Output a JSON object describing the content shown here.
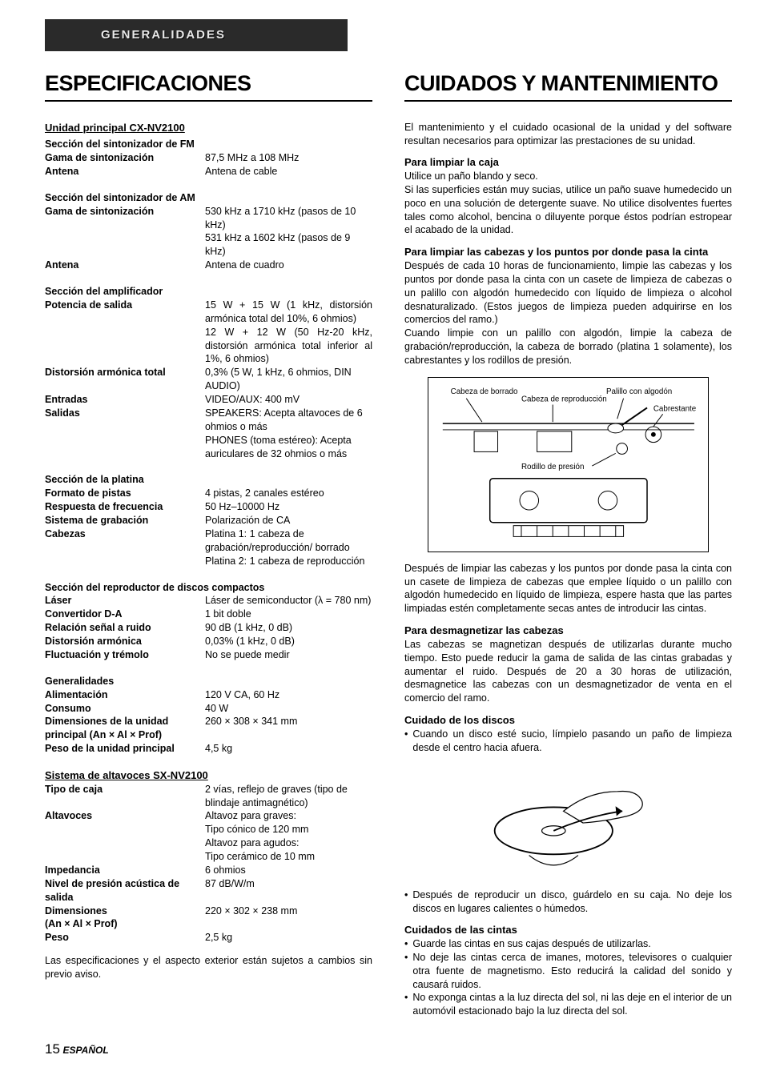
{
  "header_bar": "GENERALIDADES",
  "left": {
    "h1": "ESPECIFICACIONES",
    "main_unit_title": "Unidad principal CX-NV2100",
    "fm_title": "Sección del sintonizador de FM",
    "fm_range_l": "Gama de sintonización",
    "fm_range_v": "87,5 MHz a 108 MHz",
    "fm_ant_l": "Antena",
    "fm_ant_v": "Antena de cable",
    "am_title": "Sección del sintonizador de AM",
    "am_range_l": "Gama de sintonización",
    "am_range_v": "530 kHz a 1710 kHz (pasos de 10 kHz)\n531 kHz a 1602 kHz (pasos de 9 kHz)",
    "am_ant_l": "Antena",
    "am_ant_v": "Antena de cuadro",
    "amp_title": "Sección del amplificador",
    "amp_pow_l": "Potencia de salida",
    "amp_pow_v": "15 W + 15 W (1 kHz, distorsión armónica total del 10%, 6 ohmios)\n12 W + 12 W (50 Hz-20 kHz, distorsión armónica total inferior al 1%, 6 ohmios)",
    "amp_thd_l": "Distorsión armónica total",
    "amp_thd_v": "0,3% (5 W, 1 kHz, 6 ohmios, DIN AUDIO)",
    "amp_in_l": "Entradas",
    "amp_in_v": "VIDEO/AUX: 400 mV",
    "amp_out_l": "Salidas",
    "amp_out_v": "SPEAKERS: Acepta altavoces de 6 ohmios o más\nPHONES (toma estéreo): Acepta auriculares de 32 ohmios o más",
    "deck_title": "Sección de la platina",
    "deck_track_l": "Formato de pistas",
    "deck_track_v": "4 pistas, 2 canales estéreo",
    "deck_freq_l": "Respuesta de frecuencia",
    "deck_freq_v": "50 Hz–10000 Hz",
    "deck_rec_l": "Sistema de grabación",
    "deck_rec_v": "Polarización de CA",
    "deck_heads_l": "Cabezas",
    "deck_heads_v": "Platina 1: 1 cabeza de grabación/reproducción/ borrado\nPlatina 2: 1 cabeza de reproducción",
    "cd_title": "Sección del reproductor de discos compactos",
    "cd_laser_l": "Láser",
    "cd_laser_v": "Láser de semiconductor (λ = 780 nm)",
    "cd_da_l": "Convertidor D-A",
    "cd_da_v": "1 bit doble",
    "cd_sn_l": "Relación señal a ruido",
    "cd_sn_v": "90 dB (1 kHz, 0 dB)",
    "cd_thd_l": "Distorsión armónica",
    "cd_thd_v": "0,03% (1 kHz, 0 dB)",
    "cd_wow_l": "Fluctuación y trémolo",
    "cd_wow_v": "No se puede medir",
    "gen_title": "Generalidades",
    "gen_pow_l": "Alimentación",
    "gen_pow_v": "120 V CA, 60 Hz",
    "gen_cons_l": "Consumo",
    "gen_cons_v": "40 W",
    "gen_dim_l": "Dimensiones de la unidad principal (An × Al × Prof)",
    "gen_dim_v": "260 × 308 × 341 mm",
    "gen_wt_l": "Peso de la unidad principal",
    "gen_wt_v": "4,5 kg",
    "spk_title": "Sistema de altavoces SX-NV2100",
    "spk_box_l": "Tipo de caja",
    "spk_box_v": "2 vías, reflejo de graves (tipo de blindaje antimagnético)",
    "spk_drv_l": "Altavoces",
    "spk_drv_v": "Altavoz para graves:\nTipo cónico de 120 mm\nAltavoz para agudos:\nTipo cerámico de 10 mm",
    "spk_imp_l": "Impedancia",
    "spk_imp_v": "6 ohmios",
    "spk_spl_l": "Nivel de presión acústica de salida",
    "spk_spl_v": "87 dB/W/m",
    "spk_dim_l": "Dimensiones\n(An × Al × Prof)",
    "spk_dim_v": "220 × 302 × 238 mm",
    "spk_wt_l": "Peso",
    "spk_wt_v": "2,5 kg",
    "note": "Las especificaciones y el aspecto exterior están sujetos a cambios sin previo aviso."
  },
  "right": {
    "h1": "CUIDADOS Y MANTENIMIENTO",
    "intro": "El mantenimiento y el cuidado ocasional de la unidad y del software resultan necesarios para optimizar las prestaciones de su unidad.",
    "clean_case_t": "Para limpiar la caja",
    "clean_case_1": "Utilice un paño blando y seco.",
    "clean_case_2": "Si las superficies están muy sucias, utilice un paño suave humedecido un poco en una solución de detergente suave. No utilice disolventes fuertes tales como alcohol, bencina o diluyente porque éstos podrían estropear el acabado de la unidad.",
    "clean_heads_t": "Para limpiar las cabezas y los puntos por donde pasa la cinta",
    "clean_heads_1": "Después de cada 10 horas de funcionamiento, limpie las cabezas y los puntos por donde pasa la cinta con un casete de limpieza de cabezas o un palillo con algodón humedecido con líquido de limpieza o alcohol desnaturalizado. (Estos juegos de limpieza pueden adquirirse en los comercios del ramo.)",
    "clean_heads_2": "Cuando limpie con un palillo con algodón, limpie la cabeza de grabación/reproducción, la cabeza de borrado (platina 1 solamente), los cabrestantes y los rodillos de presión.",
    "diag": {
      "erase": "Cabeza de borrado",
      "play": "Cabeza de reproducción",
      "swab": "Palillo con algodón",
      "capstan": "Cabrestante",
      "pinch": "Rodillo de presión"
    },
    "after_clean": "Después de limpiar las cabezas y los puntos por donde pasa la cinta con un casete de limpieza de cabezas que emplee líquido o un palillo con algodón humedecido en líquido de limpieza, espere hasta que las partes limpiadas estén completamente secas antes de introducir las cintas.",
    "demag_t": "Para desmagnetizar las cabezas",
    "demag_p": "Las cabezas se magnetizan después de utilizarlas durante mucho tiempo. Esto puede reducir la gama de salida de las cintas grabadas y aumentar el ruido. Después de 20 a 30 horas de utilización, desmagnetice las cabezas con un desmagnetizador de venta en el comercio del ramo.",
    "disc_t": "Cuidado de los discos",
    "disc_b1": "Cuando un disco esté sucio, límpielo pasando un paño de limpieza desde el centro hacia afuera.",
    "disc_b2": "Después de reproducir un disco, guárdelo en su caja. No deje los discos en lugares calientes o húmedos.",
    "tape_t": "Cuidados de las cintas",
    "tape_b1": "Guarde las cintas en sus cajas después de utilizarlas.",
    "tape_b2": "No deje las cintas cerca de imanes, motores, televisores o cualquier otra fuente de magnetismo. Esto reducirá la calidad del sonido y causará ruidos.",
    "tape_b3": "No exponga cintas a la luz directa del sol, ni las deje en el interior de un automóvil estacionado bajo la luz directa del sol."
  },
  "footer_num": "15",
  "footer_word": "ESPAÑOL"
}
